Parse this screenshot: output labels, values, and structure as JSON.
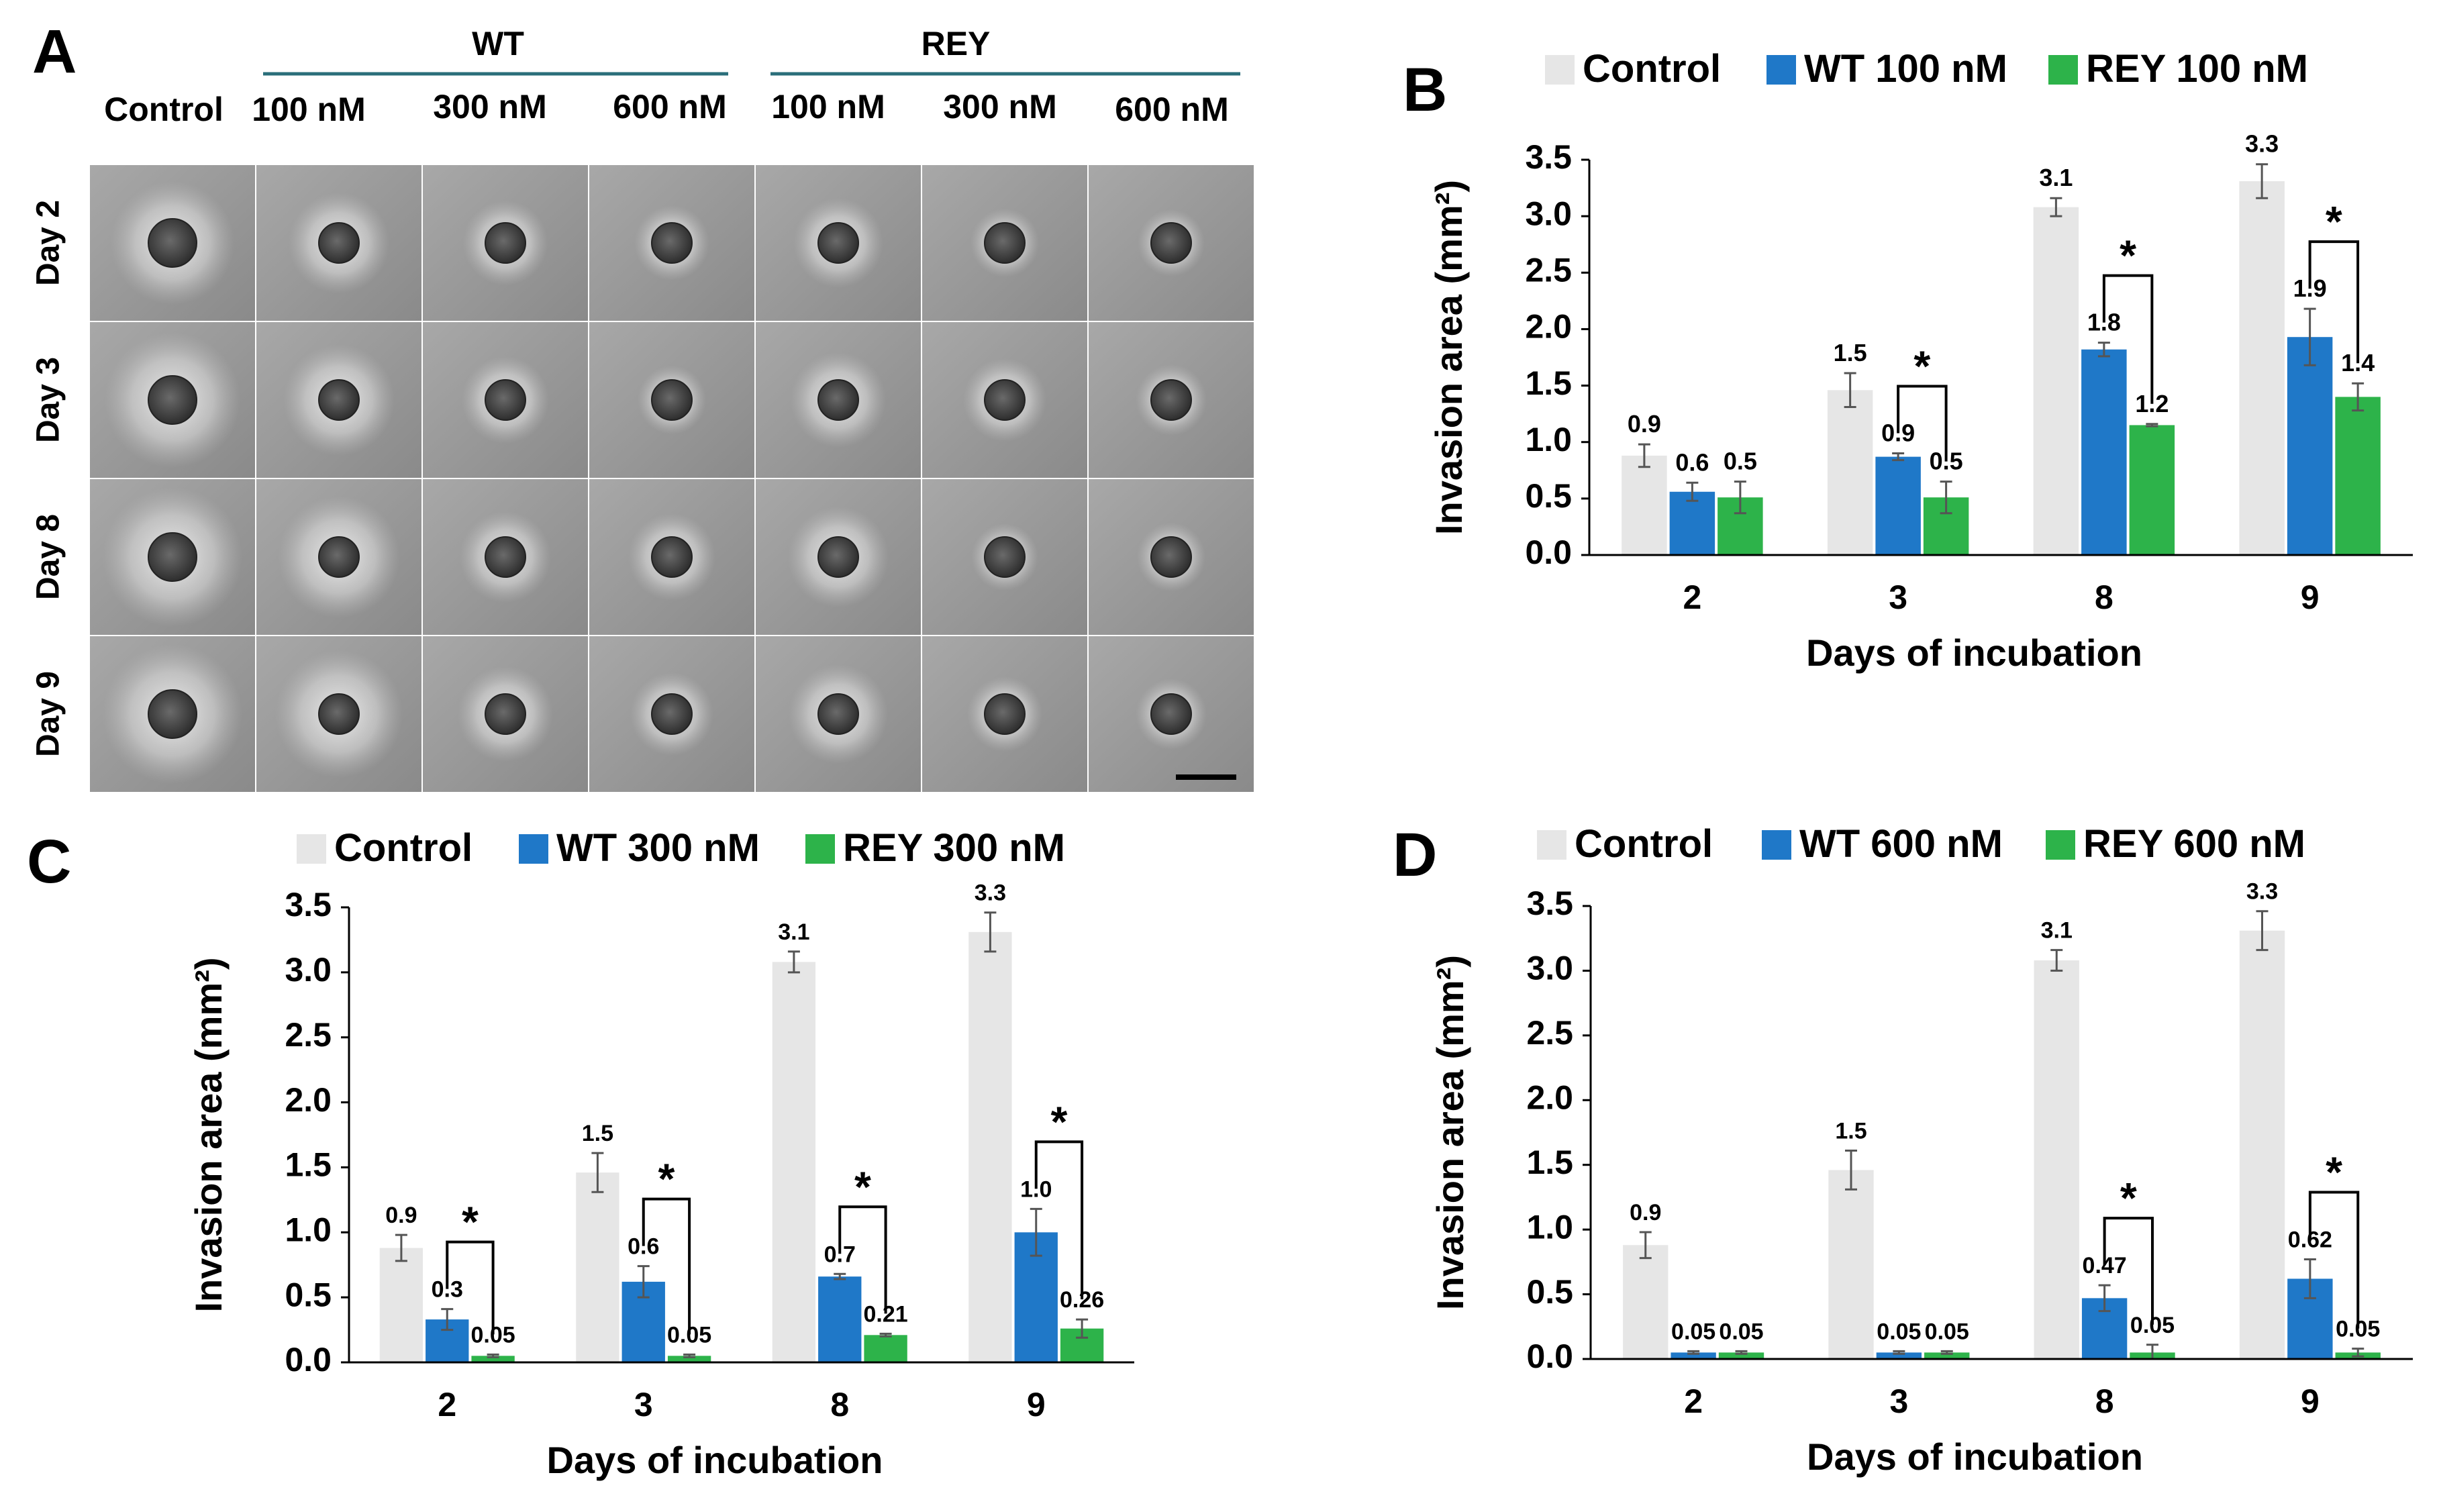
{
  "panel_a": {
    "label": "A",
    "control_label": "Control",
    "groups": [
      {
        "name": "WT",
        "concentrations": [
          "100 nM",
          "300 nM",
          "600 nM"
        ]
      },
      {
        "name": "REY",
        "concentrations": [
          "100 nM",
          "300 nM",
          "600 nM"
        ]
      }
    ],
    "days": [
      "Day 2",
      "Day 3",
      "Day 8",
      "Day 9"
    ],
    "spheroids": [
      [
        0.8,
        0.62,
        0.42,
        0.3,
        0.48,
        0.22,
        0.2
      ],
      [
        0.95,
        0.75,
        0.45,
        0.22,
        0.55,
        0.4,
        0.25
      ],
      [
        1.0,
        0.88,
        0.5,
        0.45,
        0.62,
        0.2,
        0.22
      ],
      [
        1.0,
        0.95,
        0.55,
        0.4,
        0.6,
        0.3,
        0.25
      ]
    ],
    "colors": {
      "tile_bg": "#9a9a9a",
      "core": "#3c3c3c",
      "halo": "#e6e6e6",
      "group_line": "#2a6f7a"
    }
  },
  "chart_data": [
    {
      "panel": "B",
      "type": "bar",
      "title": "",
      "categories": [
        "2",
        "3",
        "8",
        "9"
      ],
      "xlabel": "Days of incubation",
      "ylabel": "Invasion area (mm²)",
      "ylim": [
        0,
        3.5
      ],
      "yticks": [
        "0.0",
        "0.5",
        "1.0",
        "1.5",
        "2.0",
        "2.5",
        "3.0",
        "3.5"
      ],
      "legend_position": "top",
      "series": [
        {
          "name": "Control",
          "color": "#e6e6e6",
          "values": [
            0.88,
            1.46,
            3.08,
            3.31
          ],
          "errors": [
            0.1,
            0.15,
            0.08,
            0.15
          ],
          "labels": [
            "0.9",
            "1.5",
            "3.1",
            "3.3"
          ]
        },
        {
          "name": "WT 100 nM",
          "color": "#1f78c8",
          "values": [
            0.56,
            0.87,
            1.82,
            1.93
          ],
          "errors": [
            0.08,
            0.03,
            0.06,
            0.25
          ],
          "labels": [
            "0.6",
            "0.9",
            "1.8",
            "1.9"
          ]
        },
        {
          "name": "REY 100 nM",
          "color": "#2db34a",
          "values": [
            0.51,
            0.51,
            1.15,
            1.4
          ],
          "errors": [
            0.14,
            0.14,
            0.01,
            0.12
          ],
          "labels": [
            "0.5",
            "0.5",
            "1.2",
            "1.4"
          ]
        }
      ],
      "significance": [
        false,
        true,
        true,
        true
      ],
      "significance_label": "*"
    },
    {
      "panel": "C",
      "type": "bar",
      "title": "",
      "categories": [
        "2",
        "3",
        "8",
        "9"
      ],
      "xlabel": "Days of incubation",
      "ylabel": "Invasion area (mm²)",
      "ylim": [
        0,
        3.5
      ],
      "yticks": [
        "0.0",
        "0.5",
        "1.0",
        "1.5",
        "2.0",
        "2.5",
        "3.0",
        "3.5"
      ],
      "legend_position": "top",
      "series": [
        {
          "name": "Control",
          "color": "#e6e6e6",
          "values": [
            0.88,
            1.46,
            3.08,
            3.31
          ],
          "errors": [
            0.1,
            0.15,
            0.08,
            0.15
          ],
          "labels": [
            "0.9",
            "1.5",
            "3.1",
            "3.3"
          ]
        },
        {
          "name": "WT 300 nM",
          "color": "#1f78c8",
          "values": [
            0.33,
            0.62,
            0.66,
            1.0
          ],
          "errors": [
            0.08,
            0.12,
            0.02,
            0.18
          ],
          "labels": [
            "0.3",
            "0.6",
            "0.7",
            "1.0"
          ]
        },
        {
          "name": "REY 300 nM",
          "color": "#2db34a",
          "values": [
            0.05,
            0.05,
            0.21,
            0.26
          ],
          "errors": [
            0.01,
            0.01,
            0.01,
            0.07
          ],
          "labels": [
            "0.05",
            "0.05",
            "0.21",
            "0.26"
          ]
        }
      ],
      "significance": [
        true,
        true,
        true,
        true
      ],
      "significance_label": "*"
    },
    {
      "panel": "D",
      "type": "bar",
      "title": "",
      "categories": [
        "2",
        "3",
        "8",
        "9"
      ],
      "xlabel": "Days of incubation",
      "ylabel": "Invasion area (mm²)",
      "ylim": [
        0,
        3.5
      ],
      "yticks": [
        "0.0",
        "0.5",
        "1.0",
        "1.5",
        "2.0",
        "2.5",
        "3.0",
        "3.5"
      ],
      "legend_position": "top",
      "series": [
        {
          "name": "Control",
          "color": "#e6e6e6",
          "values": [
            0.88,
            1.46,
            3.08,
            3.31
          ],
          "errors": [
            0.1,
            0.15,
            0.08,
            0.15
          ],
          "labels": [
            "0.9",
            "1.5",
            "3.1",
            "3.3"
          ]
        },
        {
          "name": "WT 600 nM",
          "color": "#1f78c8",
          "values": [
            0.05,
            0.05,
            0.47,
            0.62
          ],
          "errors": [
            0.01,
            0.01,
            0.1,
            0.15
          ],
          "labels": [
            "0.05",
            "0.05",
            "0.47",
            "0.62"
          ]
        },
        {
          "name": "REY 600 nM",
          "color": "#2db34a",
          "values": [
            0.05,
            0.05,
            0.05,
            0.05
          ],
          "errors": [
            0.01,
            0.01,
            0.06,
            0.03
          ],
          "labels": [
            "0.05",
            "0.05",
            "0.05",
            "0.05"
          ]
        }
      ],
      "significance": [
        false,
        false,
        true,
        true
      ],
      "significance_label": "*"
    }
  ]
}
